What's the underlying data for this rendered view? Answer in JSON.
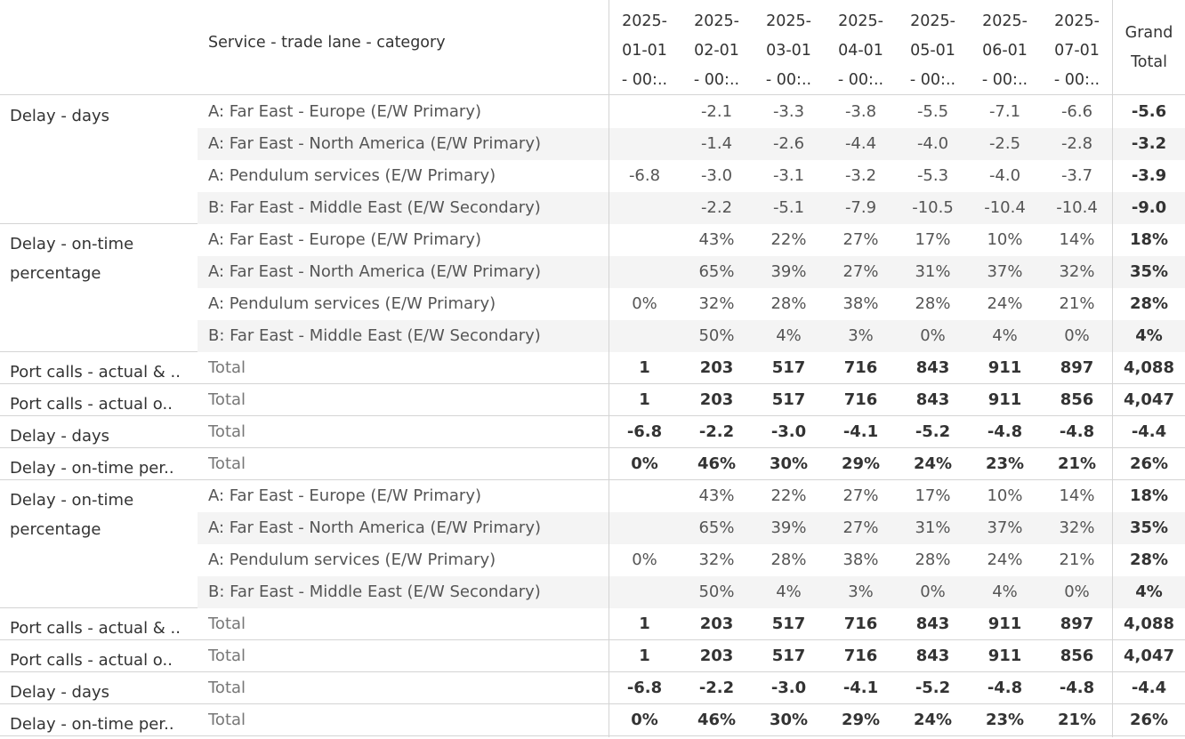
{
  "header": {
    "row_header_title": "Service - trade lane - category",
    "columns": [
      "2025-\n01-01\n- 00:..",
      "2025-\n02-01\n- 00:..",
      "2025-\n03-01\n- 00:..",
      "2025-\n04-01\n- 00:..",
      "2025-\n05-01\n- 00:..",
      "2025-\n06-01\n- 00:..",
      "2025-\n07-01\n- 00:.."
    ],
    "grand_total": "Grand\nTotal"
  },
  "blocks": [
    {
      "label": "Delay - days",
      "rows": [
        {
          "category": "A: Far East - Europe (E/W Primary)",
          "values": [
            "",
            "-2.1",
            "-3.3",
            "-3.8",
            "-5.5",
            "-7.1",
            "-6.6"
          ],
          "grand": "-5.6"
        },
        {
          "category": "A: Far East - North America (E/W Primary)",
          "values": [
            "",
            "-1.4",
            "-2.6",
            "-4.4",
            "-4.0",
            "-2.5",
            "-2.8"
          ],
          "grand": "-3.2"
        },
        {
          "category": "A: Pendulum services (E/W Primary)",
          "values": [
            "-6.8",
            "-3.0",
            "-3.1",
            "-3.2",
            "-5.3",
            "-4.0",
            "-3.7"
          ],
          "grand": "-3.9"
        },
        {
          "category": "B: Far East - Middle East (E/W Secondary)",
          "values": [
            "",
            "-2.2",
            "-5.1",
            "-7.9",
            "-10.5",
            "-10.4",
            "-10.4"
          ],
          "grand": "-9.0"
        }
      ]
    },
    {
      "label": "Delay - on-time\npercentage",
      "rows": [
        {
          "category": "A: Far East - Europe (E/W Primary)",
          "values": [
            "",
            "43%",
            "22%",
            "27%",
            "17%",
            "10%",
            "14%"
          ],
          "grand": "18%"
        },
        {
          "category": "A: Far East - North America (E/W Primary)",
          "values": [
            "",
            "65%",
            "39%",
            "27%",
            "31%",
            "37%",
            "32%"
          ],
          "grand": "35%"
        },
        {
          "category": "A: Pendulum services (E/W Primary)",
          "values": [
            "0%",
            "32%",
            "28%",
            "38%",
            "28%",
            "24%",
            "21%"
          ],
          "grand": "28%"
        },
        {
          "category": "B: Far East - Middle East (E/W Secondary)",
          "values": [
            "",
            "50%",
            "4%",
            "3%",
            "0%",
            "4%",
            "0%"
          ],
          "grand": "4%"
        }
      ]
    },
    {
      "label": "Port calls - actual & ..",
      "total": true,
      "rows": [
        {
          "category": "Total",
          "values": [
            "1",
            "203",
            "517",
            "716",
            "843",
            "911",
            "897"
          ],
          "grand": "4,088"
        }
      ]
    },
    {
      "label": "Port calls - actual o..",
      "total": true,
      "rows": [
        {
          "category": "Total",
          "values": [
            "1",
            "203",
            "517",
            "716",
            "843",
            "911",
            "856"
          ],
          "grand": "4,047"
        }
      ]
    },
    {
      "label": "Delay - days",
      "total": true,
      "rows": [
        {
          "category": "Total",
          "values": [
            "-6.8",
            "-2.2",
            "-3.0",
            "-4.1",
            "-5.2",
            "-4.8",
            "-4.8"
          ],
          "grand": "-4.4"
        }
      ]
    },
    {
      "label": "Delay - on-time per..",
      "total": true,
      "rows": [
        {
          "category": "Total",
          "values": [
            "0%",
            "46%",
            "30%",
            "29%",
            "24%",
            "23%",
            "21%"
          ],
          "grand": "26%"
        }
      ]
    },
    {
      "label": "Delay - on-time\npercentage",
      "rows": [
        {
          "category": "A: Far East - Europe (E/W Primary)",
          "values": [
            "",
            "43%",
            "22%",
            "27%",
            "17%",
            "10%",
            "14%"
          ],
          "grand": "18%"
        },
        {
          "category": "A: Far East - North America (E/W Primary)",
          "values": [
            "",
            "65%",
            "39%",
            "27%",
            "31%",
            "37%",
            "32%"
          ],
          "grand": "35%"
        },
        {
          "category": "A: Pendulum services (E/W Primary)",
          "values": [
            "0%",
            "32%",
            "28%",
            "38%",
            "28%",
            "24%",
            "21%"
          ],
          "grand": "28%"
        },
        {
          "category": "B: Far East - Middle East (E/W Secondary)",
          "values": [
            "",
            "50%",
            "4%",
            "3%",
            "0%",
            "4%",
            "0%"
          ],
          "grand": "4%"
        }
      ]
    },
    {
      "label": "Port calls - actual & ..",
      "total": true,
      "rows": [
        {
          "category": "Total",
          "values": [
            "1",
            "203",
            "517",
            "716",
            "843",
            "911",
            "897"
          ],
          "grand": "4,088"
        }
      ]
    },
    {
      "label": "Port calls - actual o..",
      "total": true,
      "rows": [
        {
          "category": "Total",
          "values": [
            "1",
            "203",
            "517",
            "716",
            "843",
            "911",
            "856"
          ],
          "grand": "4,047"
        }
      ]
    },
    {
      "label": "Delay - days",
      "total": true,
      "rows": [
        {
          "category": "Total",
          "values": [
            "-6.8",
            "-2.2",
            "-3.0",
            "-4.1",
            "-5.2",
            "-4.8",
            "-4.8"
          ],
          "grand": "-4.4"
        }
      ]
    },
    {
      "label": "Delay - on-time per..",
      "total": true,
      "rows": [
        {
          "category": "Total",
          "values": [
            "0%",
            "46%",
            "30%",
            "29%",
            "24%",
            "23%",
            "21%"
          ],
          "grand": "26%"
        }
      ]
    }
  ]
}
